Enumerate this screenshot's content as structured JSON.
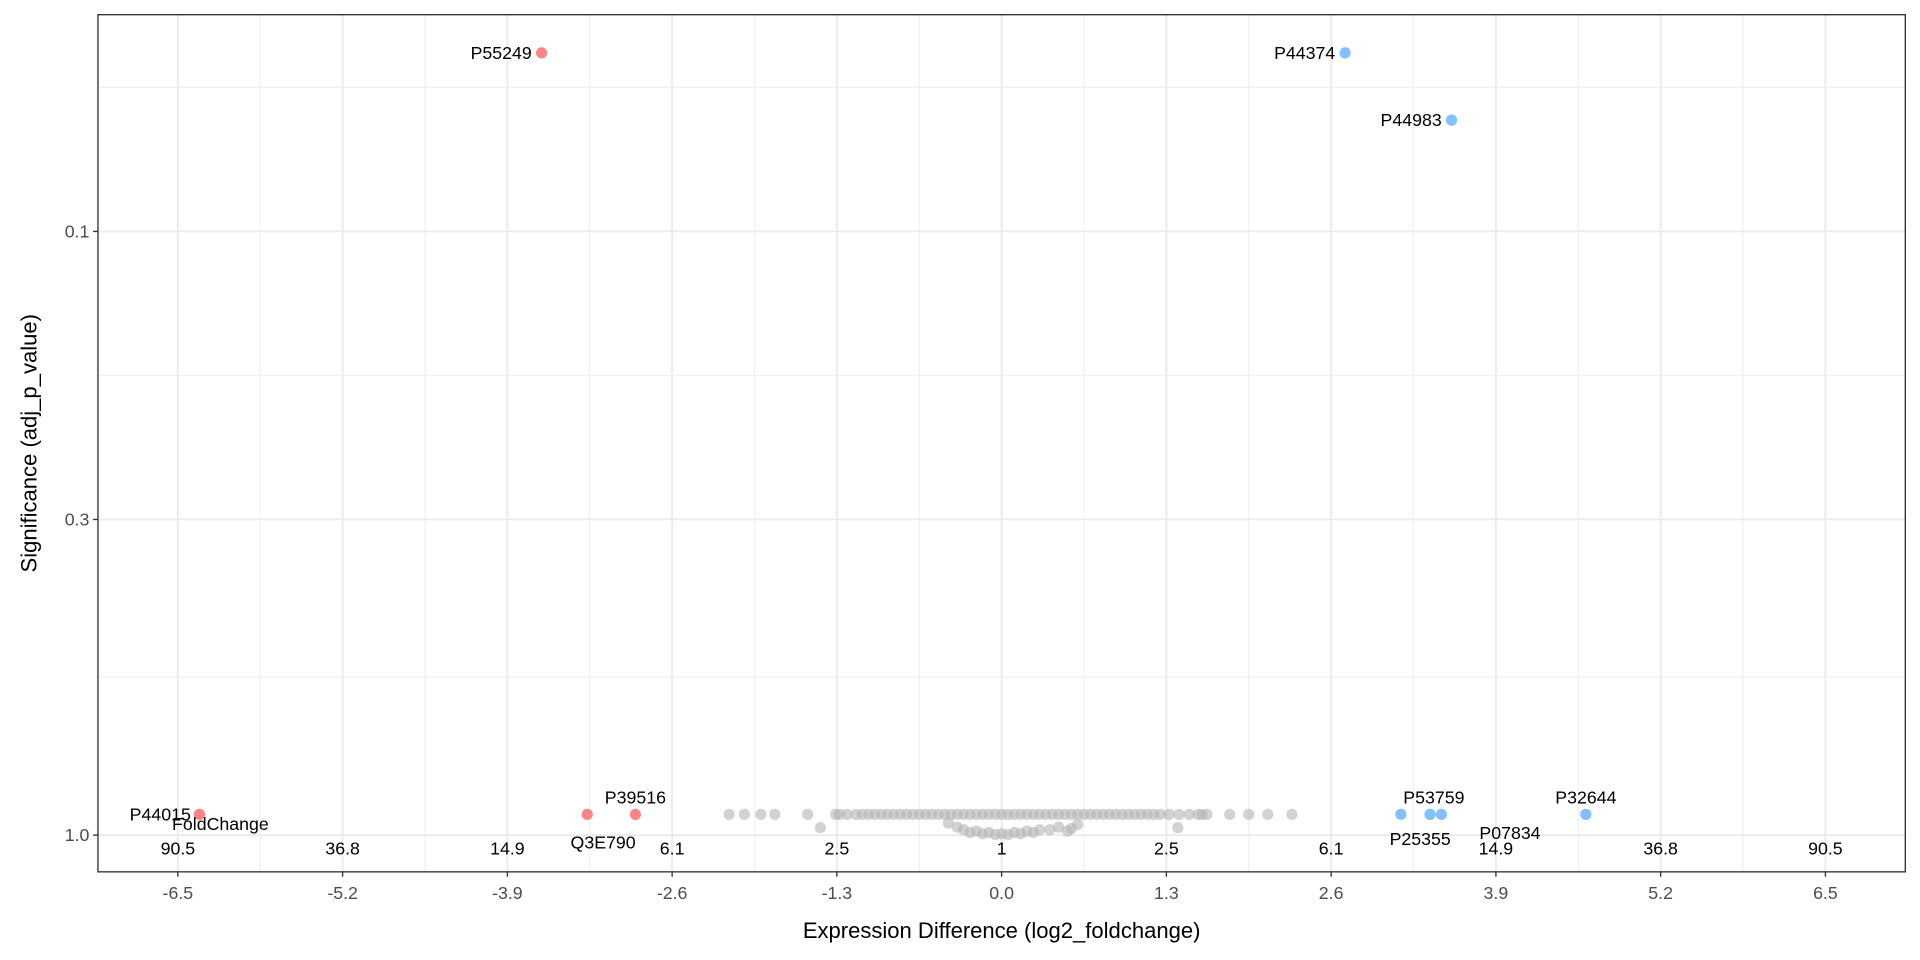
{
  "chart_data": {
    "type": "scatter",
    "title": "",
    "xlabel": "Expression Difference (log2_foldchange)",
    "ylabel": "Significance (adj_p_value)",
    "xlim": [
      -7.15,
      7.1
    ],
    "x_ticks": [
      -6.5,
      -5.2,
      -3.9,
      -2.6,
      -1.3,
      0.0,
      1.3,
      2.6,
      3.9,
      5.2,
      6.5
    ],
    "x_tick_labels": [
      "-6.5",
      "-5.2",
      "-3.9",
      "-2.6",
      "-1.3",
      "0.0",
      "1.3",
      "2.6",
      "3.9",
      "5.2",
      "6.5"
    ],
    "y_scale": "reversed log10",
    "y_ticks": [
      0.1,
      0.3,
      1.0
    ],
    "y_tick_labels": [
      "0.1",
      "0.3",
      "1.0"
    ],
    "fold_change_title": "FoldChange",
    "fold_change_labels": [
      "90.5",
      "36.8",
      "14.9",
      "6.1",
      "2.5",
      "1",
      "2.5",
      "6.1",
      "14.9",
      "36.8",
      "90.5"
    ],
    "grid": true,
    "colors": {
      "down": "#ff7070",
      "up": "#6eb4ff",
      "ns": "#b4b4b4"
    },
    "labeled_points": [
      {
        "id": "P55249",
        "log2fc": -3.63,
        "adj_p": 0.0506,
        "group": "down",
        "pos": "left"
      },
      {
        "id": "P44015",
        "log2fc": -6.33,
        "adj_p": 0.924,
        "group": "down",
        "pos": "upleft"
      },
      {
        "id": "Q3E790",
        "log2fc": -3.27,
        "adj_p": 0.924,
        "group": "down",
        "pos": "below"
      },
      {
        "id": "P39516",
        "log2fc": -2.89,
        "adj_p": 0.924,
        "group": "down",
        "pos": "above"
      },
      {
        "id": "P44374",
        "log2fc": 2.71,
        "adj_p": 0.0506,
        "group": "up",
        "pos": "left"
      },
      {
        "id": "P44983",
        "log2fc": 3.55,
        "adj_p": 0.0654,
        "group": "up",
        "pos": "left"
      },
      {
        "id": "P53759",
        "log2fc": 3.15,
        "adj_p": 0.924,
        "group": "up",
        "pos": "aboveright"
      },
      {
        "id": "P25355",
        "log2fc": 3.38,
        "adj_p": 0.924,
        "group": "up",
        "pos": "belowleft"
      },
      {
        "id": "P07834",
        "log2fc": 3.47,
        "adj_p": 0.924,
        "group": "up",
        "pos": "belowright"
      },
      {
        "id": "P32644",
        "log2fc": 4.61,
        "adj_p": 0.924,
        "group": "up",
        "pos": "above"
      }
    ],
    "ns_points": {
      "log2fc": [
        -2.15,
        -2.03,
        -1.9,
        -1.79,
        -1.53,
        -1.31,
        -1.28,
        -1.22,
        -1.15,
        -1.1,
        -1.05,
        -1.0,
        -0.95,
        -0.9,
        -0.85,
        -0.8,
        -0.75,
        -0.7,
        -0.65,
        -0.6,
        -0.55,
        -0.5,
        -0.45,
        -0.4,
        -0.35,
        -0.3,
        -0.25,
        -0.2,
        -0.15,
        -0.1,
        -0.05,
        0.0,
        0.05,
        0.1,
        0.15,
        0.2,
        0.25,
        0.3,
        0.35,
        0.4,
        0.45,
        0.5,
        0.55,
        0.6,
        0.65,
        0.7,
        0.75,
        0.8,
        0.85,
        0.9,
        0.95,
        1.0,
        1.05,
        1.1,
        1.15,
        1.2,
        1.25,
        1.32,
        1.4,
        1.48,
        1.55,
        1.58,
        1.62,
        1.8,
        1.95,
        2.1,
        2.29,
        -1.43,
        1.39,
        -0.42,
        -0.35,
        -0.3,
        -0.2,
        -0.1,
        0.0,
        0.1,
        0.2,
        0.3,
        0.45,
        0.55,
        0.6,
        -0.25,
        -0.15,
        -0.05,
        0.05,
        0.15,
        0.25,
        0.38,
        0.52
      ],
      "adj_p": [
        0.924,
        0.924,
        0.924,
        0.924,
        0.924,
        0.924,
        0.924,
        0.924,
        0.924,
        0.924,
        0.924,
        0.924,
        0.924,
        0.924,
        0.924,
        0.924,
        0.924,
        0.924,
        0.924,
        0.924,
        0.924,
        0.924,
        0.924,
        0.924,
        0.924,
        0.924,
        0.924,
        0.924,
        0.924,
        0.924,
        0.924,
        0.924,
        0.924,
        0.924,
        0.924,
        0.924,
        0.924,
        0.924,
        0.924,
        0.924,
        0.924,
        0.924,
        0.924,
        0.924,
        0.924,
        0.924,
        0.924,
        0.924,
        0.924,
        0.924,
        0.924,
        0.924,
        0.924,
        0.924,
        0.924,
        0.924,
        0.924,
        0.924,
        0.924,
        0.924,
        0.924,
        0.924,
        0.924,
        0.924,
        0.924,
        0.924,
        0.924,
        0.972,
        0.972,
        0.955,
        0.97,
        0.98,
        0.985,
        0.99,
        0.995,
        0.99,
        0.985,
        0.98,
        0.97,
        0.975,
        0.96,
        0.99,
        0.995,
        0.998,
        0.998,
        0.995,
        0.99,
        0.98,
        0.985
      ]
    }
  }
}
